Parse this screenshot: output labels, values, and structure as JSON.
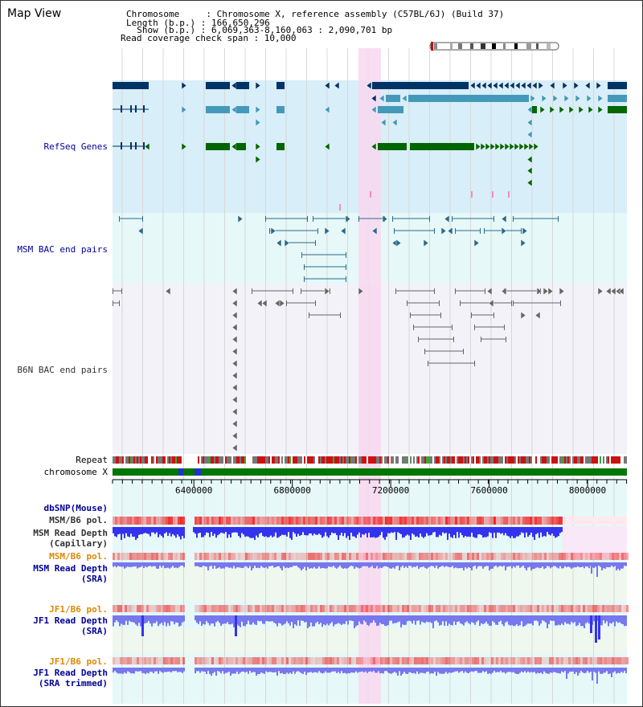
{
  "header": {
    "title": "Map View",
    "info_lines": [
      "Chromosome     : Chromosome X, reference assembly (C57BL/6J) (Build 37)",
      "Length (b.p.) : 166,650,296",
      "  Show (b.p.) : 6,069,363-8,160,063 : 2,090,701 bp",
      "Read coverage check span : 10,000"
    ]
  },
  "tracks": {
    "refseq": "RefSeq Genes",
    "msm_bac": "MSM BAC end pairs",
    "b6n_bac": "B6N BAC end pairs",
    "repeat": "Repeat",
    "chromosome": "chromosome X",
    "dbsnp": "dbSNP(Mouse)",
    "msm_b6_pol_cap": "MSM/B6 pol.",
    "msm_depth_cap_1": "MSM Read Depth",
    "msm_depth_cap_2": "(Capillary)",
    "msm_b6_pol_sra": "MSM/B6 pol.",
    "msm_depth_sra_1": "MSM Read Depth",
    "msm_depth_sra_2": "(SRA)",
    "jf1_b6_pol": "JF1/B6 pol.",
    "jf1_depth_sra_1": "JF1 Read Depth",
    "jf1_depth_sra_2": "(SRA)",
    "jf1_b6_pol_trim": "JF1/B6 pol.",
    "jf1_depth_trim_1": "JF1 Read Depth",
    "jf1_depth_trim_2": "(SRA trimmed)"
  },
  "axis": {
    "start_bp": 6069363,
    "end_bp": 8160063,
    "ticks": [
      "6400000",
      "6800000",
      "7200000",
      "7600000",
      "8000000"
    ]
  },
  "colors": {
    "refseq_bg": "#d8eef8",
    "msm_bg": "#e6f8f8",
    "b6n_bg": "#f2f2f8",
    "highlight": "#f8d8f0",
    "gene_dark": "#003366",
    "gene_mid": "#4499bb",
    "gene_green": "#006600",
    "bac_msm": "#2a6a8a",
    "bac_b6n": "#666666",
    "chrom": "#007700",
    "depth_dark": "#3333ee",
    "depth_light": "#7777ee",
    "label_blue": "#000099",
    "label_orange": "#dd8800",
    "label_gray": "#333333"
  }
}
